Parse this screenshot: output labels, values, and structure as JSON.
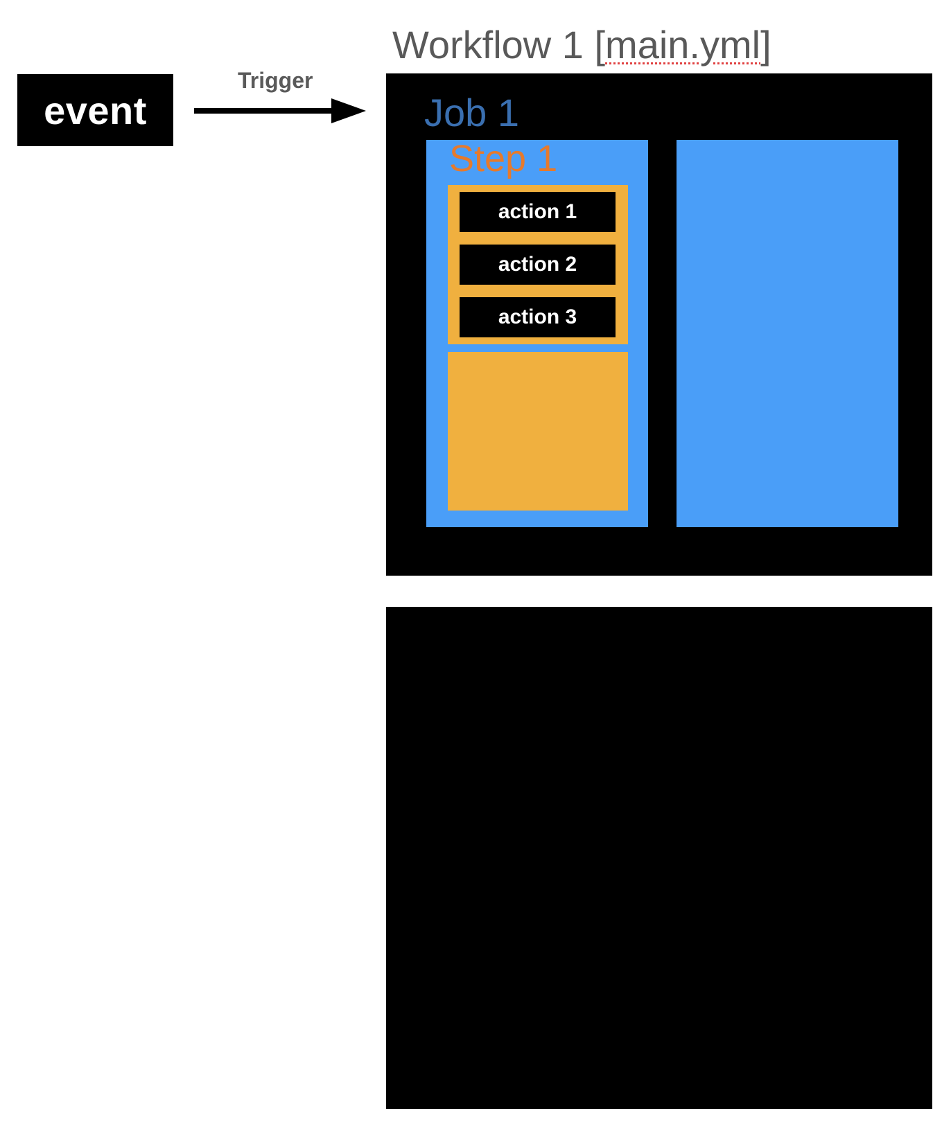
{
  "event": {
    "label": "event"
  },
  "trigger": {
    "label": "Trigger"
  },
  "workflow": {
    "title_prefix": "Workflow 1 [",
    "title_file": "main.yml",
    "title_suffix": "]"
  },
  "job": {
    "title": "Job 1"
  },
  "step": {
    "title": "Step 1"
  },
  "actions": [
    {
      "label": "action 1"
    },
    {
      "label": "action 2"
    },
    {
      "label": "action 3"
    }
  ],
  "colors": {
    "job_blue": "#4a9ef8",
    "step_orange": "#f0b03f",
    "job_title": "#3a6fb0",
    "step_title": "#e67a2c",
    "box_black": "#000000"
  }
}
